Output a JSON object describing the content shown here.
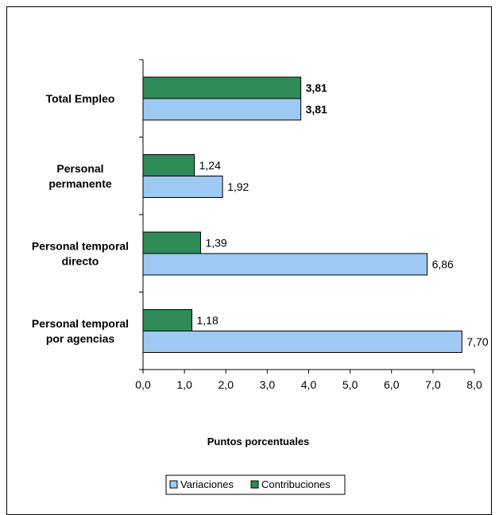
{
  "chart_data": {
    "type": "bar",
    "orientation": "horizontal",
    "categories": [
      "Total Empleo",
      "Personal permanente",
      "Personal temporal directo",
      "Personal temporal por agencias"
    ],
    "category_lines": [
      [
        "Total Empleo"
      ],
      [
        "Personal",
        "permanente"
      ],
      [
        "Personal temporal",
        "directo"
      ],
      [
        "Personal temporal",
        "por agencias"
      ]
    ],
    "series": [
      {
        "name": "Contribuciones",
        "color": "#2e8b57",
        "values": [
          3.81,
          1.24,
          1.39,
          1.18
        ],
        "labels": [
          "3,81",
          "1,24",
          "1,39",
          "1,18"
        ]
      },
      {
        "name": "Variaciones",
        "color": "#9ec9f2",
        "values": [
          3.81,
          1.92,
          6.86,
          7.7
        ],
        "labels": [
          "3,81",
          "1,92",
          "6,86",
          "7,70"
        ]
      }
    ],
    "bold_labels_category": "Total Empleo",
    "xlabel": "Puntos porcentuales",
    "xlim": [
      0,
      8
    ],
    "xticks": [
      "0,0",
      "1,0",
      "2,0",
      "3,0",
      "4,0",
      "5,0",
      "6,0",
      "7,0",
      "8,0"
    ],
    "grid": false,
    "legend": {
      "position": "bottom",
      "entries": [
        "Variaciones",
        "Contribuciones"
      ]
    }
  }
}
